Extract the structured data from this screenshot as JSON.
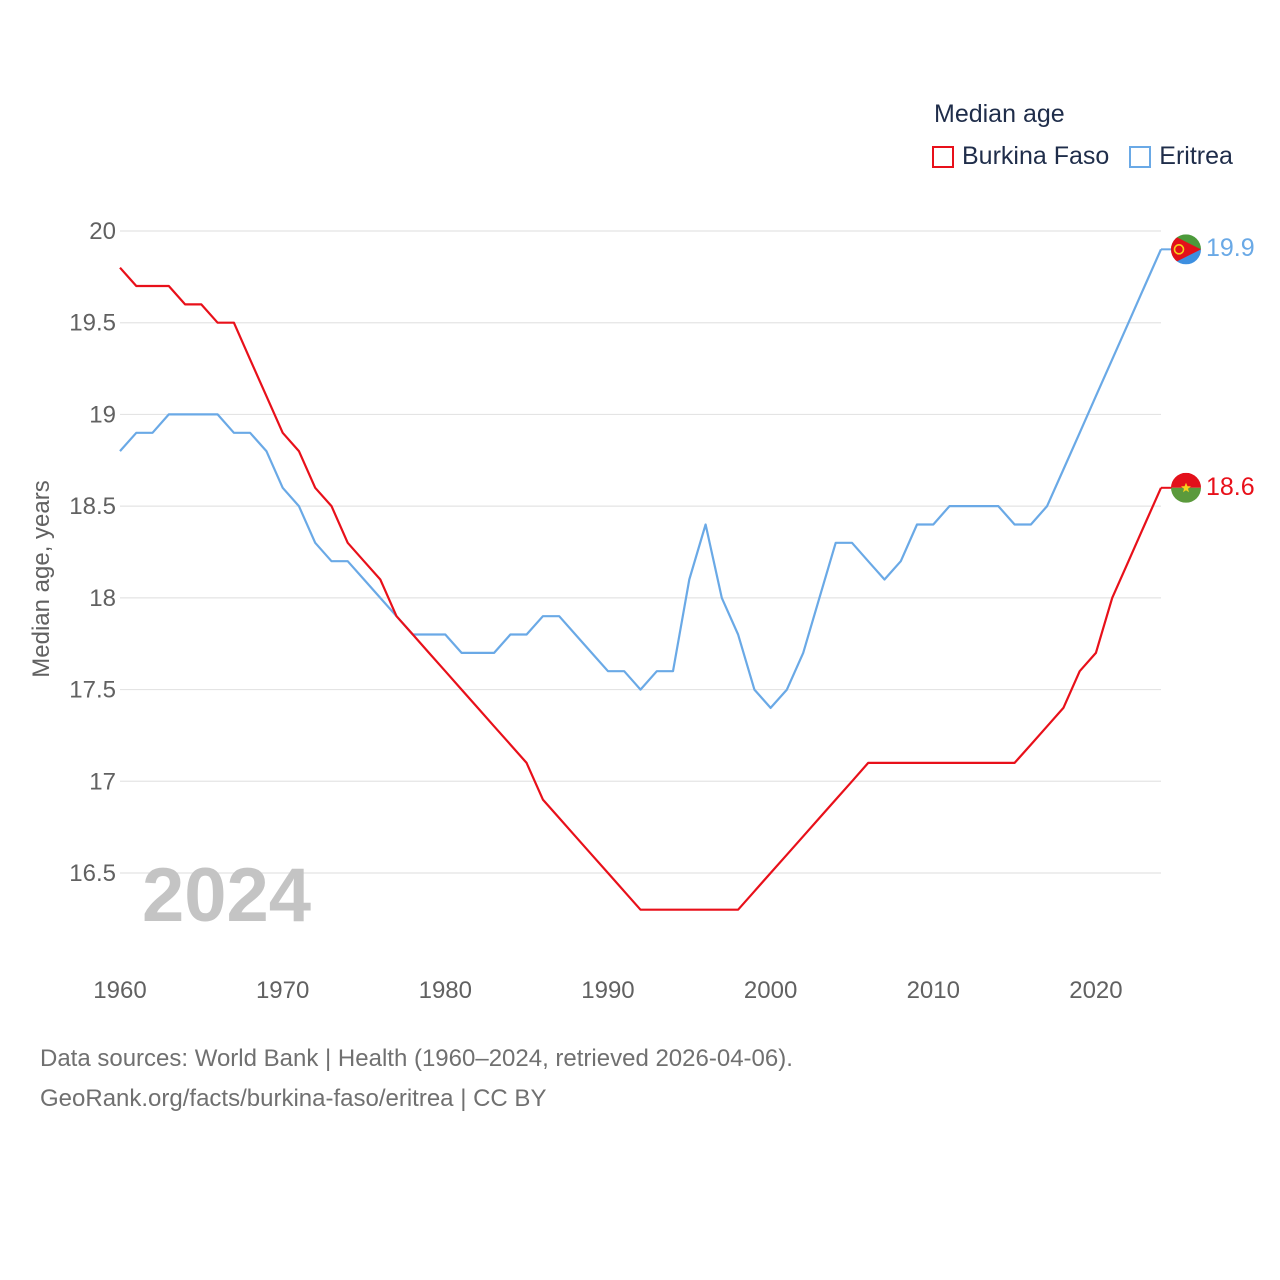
{
  "legend": {
    "title": "Median age",
    "items": [
      {
        "label": "Burkina Faso",
        "color": "#e8101a"
      },
      {
        "label": "Eritrea",
        "color": "#6aa9e6"
      }
    ]
  },
  "watermark_year": "2024",
  "footer": {
    "line1": "Data sources: World Bank | Health (1960–2024, retrieved 2026-04-06).",
    "line2": "GeoRank.org/facts/burkina-faso/eritrea | CC BY"
  },
  "chart_data": {
    "type": "line",
    "title": "Median age",
    "xlabel": "",
    "ylabel": "Median age, years",
    "xlim": [
      1960,
      2024
    ],
    "ylim": [
      16,
      20
    ],
    "xticks": [
      1960,
      1970,
      1980,
      1990,
      2000,
      2010,
      2020
    ],
    "xtick_labels": [
      "1960",
      "1970",
      "1980",
      "1990",
      "2000",
      "2010",
      "2020"
    ],
    "yticks": [
      16.5,
      17,
      17.5,
      18,
      18.5,
      19,
      19.5,
      20
    ],
    "ytick_labels": [
      "16.5",
      "17",
      "17.5",
      "18",
      "18.5",
      "19",
      "19.5",
      "20"
    ],
    "grid": true,
    "legend_position": "top-right",
    "x": [
      1960,
      1961,
      1962,
      1963,
      1964,
      1965,
      1966,
      1967,
      1968,
      1969,
      1970,
      1971,
      1972,
      1973,
      1974,
      1975,
      1976,
      1977,
      1978,
      1979,
      1980,
      1981,
      1982,
      1983,
      1984,
      1985,
      1986,
      1987,
      1988,
      1989,
      1990,
      1991,
      1992,
      1993,
      1994,
      1995,
      1996,
      1997,
      1998,
      1999,
      2000,
      2001,
      2002,
      2003,
      2004,
      2005,
      2006,
      2007,
      2008,
      2009,
      2010,
      2011,
      2012,
      2013,
      2014,
      2015,
      2016,
      2017,
      2018,
      2019,
      2020,
      2021,
      2022,
      2023,
      2024
    ],
    "series": [
      {
        "name": "Burkina Faso",
        "color": "#e8101a",
        "end_label": "18.6",
        "values": [
          19.8,
          19.7,
          19.7,
          19.7,
          19.6,
          19.6,
          19.5,
          19.5,
          19.3,
          19.1,
          18.9,
          18.8,
          18.6,
          18.5,
          18.3,
          18.2,
          18.1,
          17.9,
          17.8,
          17.7,
          17.6,
          17.5,
          17.4,
          17.3,
          17.2,
          17.1,
          16.9,
          16.8,
          16.7,
          16.6,
          16.5,
          16.4,
          16.3,
          16.3,
          16.3,
          16.3,
          16.3,
          16.3,
          16.3,
          16.4,
          16.5,
          16.6,
          16.7,
          16.8,
          16.9,
          17.0,
          17.1,
          17.1,
          17.1,
          17.1,
          17.1,
          17.1,
          17.1,
          17.1,
          17.1,
          17.1,
          17.2,
          17.3,
          17.4,
          17.6,
          17.7,
          18.0,
          18.2,
          18.4,
          18.6
        ]
      },
      {
        "name": "Eritrea",
        "color": "#6aa9e6",
        "end_label": "19.9",
        "values": [
          18.8,
          18.9,
          18.9,
          19.0,
          19.0,
          19.0,
          19.0,
          18.9,
          18.9,
          18.8,
          18.6,
          18.5,
          18.3,
          18.2,
          18.2,
          18.1,
          18.0,
          17.9,
          17.8,
          17.8,
          17.8,
          17.7,
          17.7,
          17.7,
          17.8,
          17.8,
          17.9,
          17.9,
          17.8,
          17.7,
          17.6,
          17.6,
          17.5,
          17.6,
          17.6,
          18.1,
          18.4,
          18.0,
          17.8,
          17.5,
          17.4,
          17.5,
          17.7,
          18.0,
          18.3,
          18.3,
          18.2,
          18.1,
          18.2,
          18.4,
          18.4,
          18.5,
          18.5,
          18.5,
          18.5,
          18.4,
          18.4,
          18.5,
          18.7,
          18.9,
          19.1,
          19.3,
          19.5,
          19.7,
          19.9
        ]
      }
    ]
  }
}
